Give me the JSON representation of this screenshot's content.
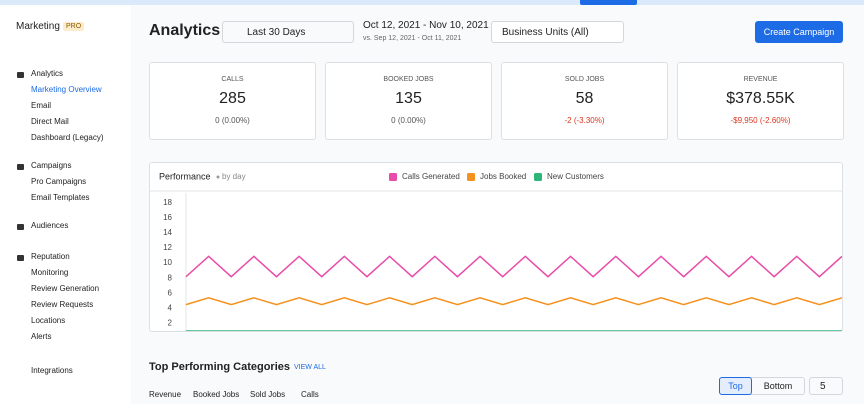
{
  "sidebar": {
    "brand": "Marketing",
    "badge": "PRO",
    "sections": [
      {
        "label": "Analytics",
        "items": [
          "Marketing Overview",
          "Email",
          "Direct Mail",
          "Dashboard (Legacy)"
        ]
      },
      {
        "label": "Campaigns",
        "items": [
          "Pro Campaigns",
          "Email Templates"
        ]
      },
      {
        "label": "Audiences",
        "items": []
      },
      {
        "label": "Reputation",
        "items": [
          "Monitoring",
          "Review Generation",
          "Review Requests",
          "Locations",
          "Alerts"
        ]
      }
    ],
    "integrations": "Integrations"
  },
  "header": {
    "title": "Analytics",
    "range": "Last 30 Days",
    "dates": "Oct 12, 2021 - Nov 10, 2021",
    "compare": "vs. Sep 12, 2021 - Oct 11, 2021",
    "units": "Business Units (All)",
    "button": "Create Campaign"
  },
  "kpis": [
    {
      "label": "CALLS",
      "value": "285",
      "change": "0 (0.00%)"
    },
    {
      "label": "BOOKED JOBS",
      "value": "135",
      "change": "0 (0.00%)"
    },
    {
      "label": "SOLD JOBS",
      "value": "58",
      "change": "-2 (-3.30%)"
    },
    {
      "label": "REVENUE",
      "value": "$378.55K",
      "change": "-$9,950 (-2.60%)"
    }
  ],
  "chart_data": {
    "type": "line",
    "title": "Performance",
    "subtitle": "by day",
    "ylim": [
      1,
      19.3
    ],
    "yticks": [
      2,
      4,
      6,
      8,
      10,
      12,
      14,
      16,
      18
    ],
    "grid": false,
    "series": [
      {
        "name": "Calls Generated",
        "color": "#e94ba8",
        "values": [
          8.2,
          10.9,
          8.2,
          10.9,
          8.2,
          10.9,
          8.2,
          10.9,
          8.2,
          10.9,
          8.2,
          10.9,
          8.2,
          10.9,
          8.2,
          10.9,
          8.2,
          10.9,
          8.2,
          10.9,
          8.2,
          10.9,
          8.2,
          10.9,
          8.2,
          10.9,
          8.2,
          10.9,
          8.2,
          10.9
        ]
      },
      {
        "name": "Jobs Booked",
        "color": "#f5911e",
        "values": [
          4.5,
          5.4,
          4.5,
          5.4,
          4.5,
          5.4,
          4.5,
          5.4,
          4.5,
          5.4,
          4.5,
          5.4,
          4.5,
          5.4,
          4.5,
          5.4,
          4.5,
          5.4,
          4.5,
          5.4,
          4.5,
          5.4,
          4.5,
          5.4,
          4.5,
          5.4,
          4.5,
          5.4,
          4.5,
          5.4
        ]
      },
      {
        "name": "New Customers",
        "color": "#2db57a",
        "values": [
          1,
          1,
          1,
          1,
          1,
          1,
          1,
          1,
          1,
          1,
          1,
          1,
          1,
          1,
          1,
          1,
          1,
          1,
          1,
          1,
          1,
          1,
          1,
          1,
          1,
          1,
          1,
          1,
          1,
          1
        ]
      }
    ]
  },
  "top": {
    "title": "Top Performing Categories",
    "link": "VIEW ALL",
    "tabs": [
      "Revenue",
      "Booked Jobs",
      "Sold Jobs",
      "Calls"
    ],
    "toggle": [
      "Top",
      "Bottom"
    ],
    "count": "5"
  }
}
